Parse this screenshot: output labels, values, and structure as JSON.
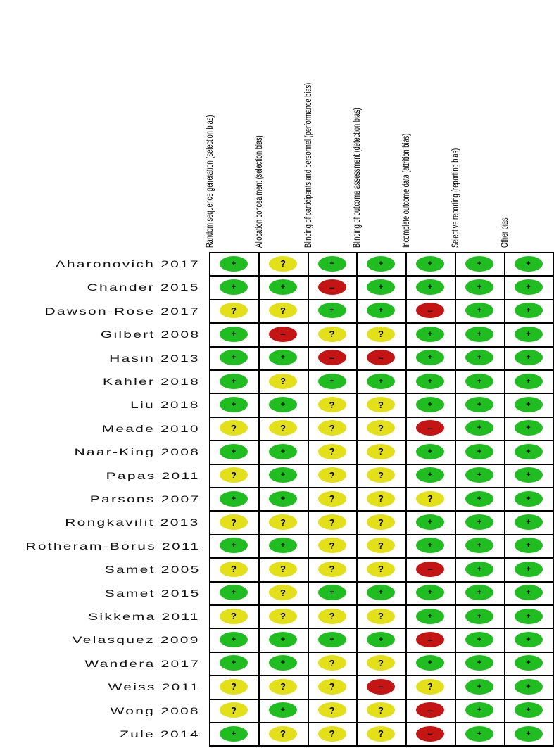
{
  "chart_data": {
    "type": "table",
    "domains": [
      "Random sequence generation (selection bias)",
      "Allocation concealment (selection bias)",
      "Blinding of participants and personnel (performance bias)",
      "Blinding of outcome assessment (detection bias)",
      "Incomplete outcome data (attrition bias)",
      "Selective reporting (reporting bias)",
      "Other bias"
    ],
    "studies": [
      "Aharonovich 2017",
      "Chander 2015",
      "Dawson-Rose 2017",
      "Gilbert 2008",
      "Hasin 2013",
      "Kahler 2018",
      "Liu 2018",
      "Meade 2010",
      "Naar-King 2008",
      "Papas 2011",
      "Parsons 2007",
      "Rongkavilit 2013",
      "Rotheram-Borus 2011",
      "Samet 2005",
      "Samet 2015",
      "Sikkema 2011",
      "Velasquez 2009",
      "Wandera 2017",
      "Weiss 2011",
      "Wong 2008",
      "Zule 2014"
    ],
    "judgements": [
      [
        "+",
        "?",
        "+",
        "+",
        "+",
        "+",
        "+"
      ],
      [
        "+",
        "+",
        "-",
        "+",
        "+",
        "+",
        "+"
      ],
      [
        "?",
        "?",
        "+",
        "+",
        "-",
        "+",
        "+"
      ],
      [
        "+",
        "-",
        "?",
        "?",
        "+",
        "+",
        "+"
      ],
      [
        "+",
        "+",
        "-",
        "-",
        "+",
        "+",
        "+"
      ],
      [
        "+",
        "?",
        "+",
        "+",
        "+",
        "+",
        "+"
      ],
      [
        "+",
        "+",
        "?",
        "?",
        "+",
        "+",
        "+"
      ],
      [
        "?",
        "?",
        "?",
        "?",
        "-",
        "+",
        "+"
      ],
      [
        "+",
        "+",
        "?",
        "?",
        "+",
        "+",
        "+"
      ],
      [
        "?",
        "+",
        "?",
        "?",
        "+",
        "+",
        "+"
      ],
      [
        "+",
        "+",
        "?",
        "?",
        "?",
        "+",
        "+"
      ],
      [
        "?",
        "?",
        "?",
        "?",
        "+",
        "+",
        "+"
      ],
      [
        "+",
        "+",
        "?",
        "?",
        "+",
        "+",
        "+"
      ],
      [
        "?",
        "?",
        "?",
        "?",
        "-",
        "+",
        "+"
      ],
      [
        "+",
        "?",
        "+",
        "+",
        "+",
        "+",
        "+"
      ],
      [
        "?",
        "?",
        "?",
        "?",
        "+",
        "+",
        "+"
      ],
      [
        "+",
        "+",
        "+",
        "+",
        "-",
        "+",
        "+"
      ],
      [
        "+",
        "+",
        "?",
        "?",
        "+",
        "+",
        "+"
      ],
      [
        "?",
        "?",
        "?",
        "-",
        "?",
        "+",
        "+"
      ],
      [
        "?",
        "+",
        "?",
        "?",
        "-",
        "+",
        "+"
      ],
      [
        "+",
        "?",
        "?",
        "?",
        "-",
        "+",
        "+"
      ]
    ],
    "legend": {
      "+": {
        "meaning": "low risk",
        "color": "#1fbd1f"
      },
      "?": {
        "meaning": "unclear risk",
        "color": "#e3e01a"
      },
      "-": {
        "meaning": "high risk",
        "color": "#c41414"
      }
    }
  }
}
